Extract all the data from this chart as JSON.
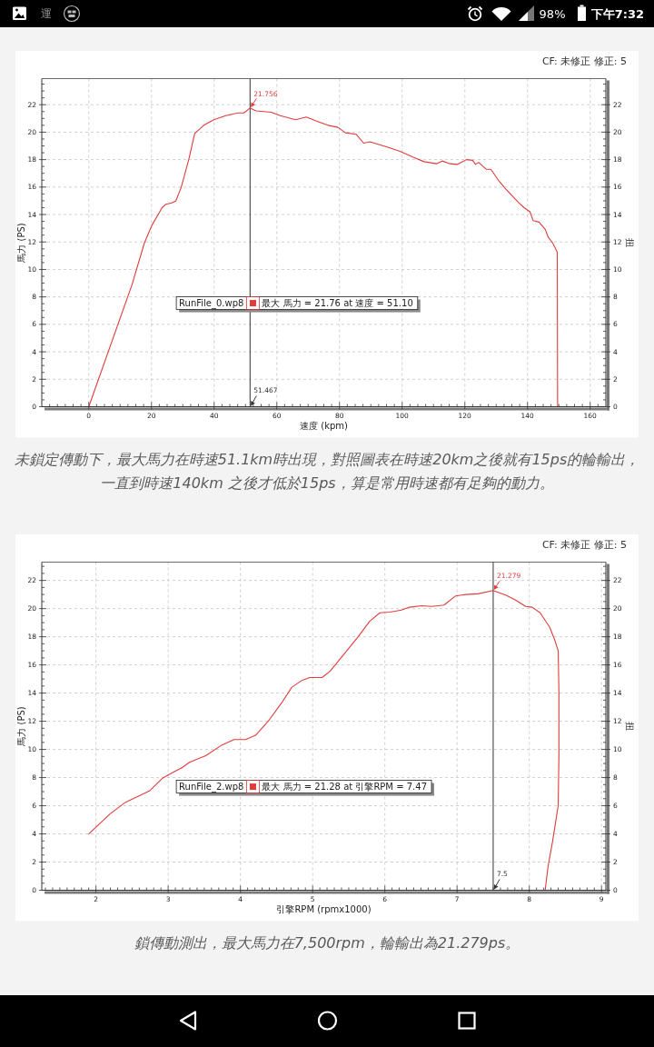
{
  "chart_data": [
    {
      "type": "other",
      "annotations": [
        "運",
        "98%",
        "下午7:32"
      ]
    },
    {
      "type": "line",
      "subtitle": "CF: 未修正 修正: 5",
      "xlabel": "速度 (kpm)",
      "ylabel": "馬力 (PS)",
      "y2label": "扭",
      "legend_title": "RunFile_0.wp8",
      "legend": "left",
      "grid": true,
      "xlim": [
        -15,
        165
      ],
      "ylim": [
        0,
        23.9
      ],
      "y2lim": [
        0,
        23.9
      ],
      "xticks": [
        {
          "value": -12.5,
          "label": null
        },
        {
          "value": -10,
          "label": null
        },
        {
          "value": -7.5,
          "label": null
        },
        {
          "value": -5,
          "label": null
        },
        {
          "value": -2.5,
          "label": null
        },
        0,
        {
          "value": 2.5,
          "label": null
        },
        {
          "value": 5,
          "label": null
        },
        {
          "value": 7.5,
          "label": null
        },
        {
          "value": 10,
          "label": null
        },
        {
          "value": 12.5,
          "label": null
        },
        {
          "value": 15,
          "label": null
        },
        {
          "value": 17.5,
          "label": null
        },
        20,
        {
          "value": 22.5,
          "label": null
        },
        {
          "value": 25,
          "label": null
        },
        {
          "value": 27.5,
          "label": null
        },
        {
          "value": 30,
          "label": null
        },
        {
          "value": 32.5,
          "label": null
        },
        {
          "value": 35,
          "label": null
        },
        {
          "value": 37.5,
          "label": null
        },
        40,
        {
          "value": 42.5,
          "label": null
        },
        {
          "value": 45,
          "label": null
        },
        {
          "value": 47.5,
          "label": null
        },
        {
          "value": 50,
          "label": null
        },
        {
          "value": 52.5,
          "label": null
        },
        {
          "value": 55,
          "label": null
        },
        {
          "value": 57.5,
          "label": null
        },
        60,
        {
          "value": 62.5,
          "label": null
        },
        {
          "value": 65,
          "label": null
        },
        {
          "value": 67.5,
          "label": null
        },
        {
          "value": 70,
          "label": null
        },
        {
          "value": 72.5,
          "label": null
        },
        {
          "value": 75,
          "label": null
        },
        {
          "value": 77.5,
          "label": null
        },
        80,
        {
          "value": 82.5,
          "label": null
        },
        {
          "value": 85,
          "label": null
        },
        {
          "value": 87.5,
          "label": null
        },
        {
          "value": 90,
          "label": null
        },
        {
          "value": 92.5,
          "label": null
        },
        {
          "value": 95,
          "label": null
        },
        {
          "value": 97.5,
          "label": null
        },
        100,
        {
          "value": 102.5,
          "label": null
        },
        {
          "value": 105,
          "label": null
        },
        {
          "value": 107.5,
          "label": null
        },
        {
          "value": 110,
          "label": null
        },
        {
          "value": 112.5,
          "label": null
        },
        {
          "value": 115,
          "label": null
        },
        {
          "value": 117.5,
          "label": null
        },
        120,
        {
          "value": 122.5,
          "label": null
        },
        {
          "value": 125,
          "label": null
        },
        {
          "value": 127.5,
          "label": null
        },
        {
          "value": 130,
          "label": null
        },
        {
          "value": 132.5,
          "label": null
        },
        {
          "value": 135,
          "label": null
        },
        {
          "value": 137.5,
          "label": null
        },
        140,
        {
          "value": 142.5,
          "label": null
        },
        {
          "value": 145,
          "label": null
        },
        {
          "value": 147.5,
          "label": null
        },
        {
          "value": 150,
          "label": null
        },
        {
          "value": 152.5,
          "label": null
        },
        {
          "value": 155,
          "label": null
        },
        {
          "value": 157.5,
          "label": null
        },
        160,
        {
          "value": 162.5,
          "label": null
        }
      ],
      "yticks": [
        0,
        {
          "value": 0.5,
          "label": null
        },
        {
          "value": 1,
          "label": null
        },
        {
          "value": 1.5,
          "label": null
        },
        2,
        {
          "value": 2.5,
          "label": null
        },
        {
          "value": 3,
          "label": null
        },
        {
          "value": 3.5,
          "label": null
        },
        4,
        {
          "value": 4.5,
          "label": null
        },
        {
          "value": 5,
          "label": null
        },
        {
          "value": 5.5,
          "label": null
        },
        6,
        {
          "value": 6.5,
          "label": null
        },
        {
          "value": 7,
          "label": null
        },
        {
          "value": 7.5,
          "label": null
        },
        8,
        {
          "value": 8.5,
          "label": null
        },
        {
          "value": 9,
          "label": null
        },
        {
          "value": 9.5,
          "label": null
        },
        10,
        {
          "value": 10.5,
          "label": null
        },
        {
          "value": 11,
          "label": null
        },
        {
          "value": 11.5,
          "label": null
        },
        12,
        {
          "value": 12.5,
          "label": null
        },
        {
          "value": 13,
          "label": null
        },
        {
          "value": 13.5,
          "label": null
        },
        14,
        {
          "value": 14.5,
          "label": null
        },
        {
          "value": 15,
          "label": null
        },
        {
          "value": 15.5,
          "label": null
        },
        16,
        {
          "value": 16.5,
          "label": null
        },
        {
          "value": 17,
          "label": null
        },
        {
          "value": 17.5,
          "label": null
        },
        18,
        {
          "value": 18.5,
          "label": null
        },
        {
          "value": 19,
          "label": null
        },
        {
          "value": 19.5,
          "label": null
        },
        20,
        {
          "value": 20.5,
          "label": null
        },
        {
          "value": 21,
          "label": null
        },
        {
          "value": 21.5,
          "label": null
        },
        22,
        {
          "value": 22.5,
          "label": null
        },
        {
          "value": 23,
          "label": null
        },
        {
          "value": 23.5,
          "label": null
        }
      ],
      "y2ticks": [
        0,
        {
          "value": 0.5,
          "label": null
        },
        {
          "value": 1,
          "label": null
        },
        {
          "value": 1.5,
          "label": null
        },
        2,
        {
          "value": 2.5,
          "label": null
        },
        {
          "value": 3,
          "label": null
        },
        {
          "value": 3.5,
          "label": null
        },
        4,
        {
          "value": 4.5,
          "label": null
        },
        {
          "value": 5,
          "label": null
        },
        {
          "value": 5.5,
          "label": null
        },
        6,
        {
          "value": 6.5,
          "label": null
        },
        {
          "value": 7,
          "label": null
        },
        {
          "value": 7.5,
          "label": null
        },
        8,
        {
          "value": 8.5,
          "label": null
        },
        {
          "value": 9,
          "label": null
        },
        {
          "value": 9.5,
          "label": null
        },
        10,
        {
          "value": 10.5,
          "label": null
        },
        {
          "value": 11,
          "label": null
        },
        {
          "value": 11.5,
          "label": null
        },
        12,
        {
          "value": 12.5,
          "label": null
        },
        {
          "value": 13,
          "label": null
        },
        {
          "value": 13.5,
          "label": null
        },
        14,
        {
          "value": 14.5,
          "label": null
        },
        {
          "value": 15,
          "label": null
        },
        {
          "value": 15.5,
          "label": null
        },
        16,
        {
          "value": 16.5,
          "label": null
        },
        {
          "value": 17,
          "label": null
        },
        {
          "value": 17.5,
          "label": null
        },
        18,
        {
          "value": 18.5,
          "label": null
        },
        {
          "value": 19,
          "label": null
        },
        {
          "value": 19.5,
          "label": null
        },
        20,
        {
          "value": 20.5,
          "label": null
        },
        {
          "value": 21,
          "label": null
        },
        {
          "value": 21.5,
          "label": null
        },
        22,
        {
          "value": 22.5,
          "label": null
        },
        {
          "value": 23,
          "label": null
        },
        {
          "value": 23.5,
          "label": null
        }
      ],
      "series": [
        {
          "name": "最大 馬力 = 21.76 at 速度 = 51.10",
          "color": "#e03c3c",
          "x": [
            0,
            13.8,
            17.7,
            20.1,
            23.4,
            24.6,
            26.5,
            27.8,
            29.5,
            31.9,
            33.8,
            36.7,
            39.9,
            43.7,
            47.6,
            49.5,
            51.467,
            53.4,
            58.2,
            61.1,
            66,
            69.4,
            72.7,
            76.3,
            79.5,
            81.9,
            85.3,
            87.7,
            89.7,
            95.4,
            99.3,
            103.7,
            107,
            110.9,
            112.8,
            115.2,
            117.6,
            120.5,
            122.5,
            123.4,
            124.4,
            126.8,
            128.3,
            130.7,
            133.1,
            137,
            138.9,
            140.8,
            141.8,
            143.7,
            145.7,
            146.6,
            148.1,
            149.5,
            149.6
          ],
          "values": [
            0,
            8.9,
            11.9,
            13.2,
            14.5,
            14.75,
            14.85,
            15,
            16,
            18,
            19.9,
            20.5,
            20.9,
            21.2,
            21.4,
            21.4,
            21.756,
            21.55,
            21.45,
            21.2,
            20.9,
            21.1,
            20.8,
            20.5,
            20.35,
            19.95,
            19.85,
            19.2,
            19.3,
            18.9,
            18.6,
            18.15,
            17.85,
            17.7,
            17.9,
            17.7,
            17.65,
            18,
            17.95,
            17.65,
            17.8,
            17.3,
            17.3,
            16.5,
            15.85,
            14.9,
            14.5,
            14.2,
            13.55,
            13.45,
            12.9,
            12.35,
            11.9,
            11.25,
            0
          ]
        }
      ],
      "ref_lines": [
        {
          "axis": "x",
          "value": 51.467,
          "label": "51.467",
          "color": "#333333"
        }
      ],
      "annotations": [
        {
          "text": "21.756",
          "x": 51.467,
          "y": 21.756
        },
        "未鎖定傳動下，最大馬力在時速51.1km時出現，對照圖表在時速20km之後就有15ps的輪輸出，",
        "一直到時速140km 之後才低於15ps，算是常用時速都有足夠的動力。"
      ]
    },
    {
      "type": "line",
      "subtitle": "CF: 未修正 修正: 5",
      "xlabel": "引擎RPM (rpmx1000)",
      "ylabel": "馬力 (PS)",
      "y2label": "扭",
      "legend_title": "RunFile_2.wp8",
      "legend": "left",
      "grid": true,
      "xlim": [
        1.25,
        9.06
      ],
      "ylim": [
        0,
        23.3
      ],
      "y2lim": [
        0,
        23.3
      ],
      "xticks": [
        {
          "value": 1.3,
          "label": null
        },
        {
          "value": 1.4,
          "label": null
        },
        {
          "value": 1.5,
          "label": null
        },
        {
          "value": 1.6,
          "label": null
        },
        {
          "value": 1.7,
          "label": null
        },
        {
          "value": 1.8,
          "label": null
        },
        {
          "value": 1.9,
          "label": null
        },
        2,
        {
          "value": 2.1,
          "label": null
        },
        {
          "value": 2.2,
          "label": null
        },
        {
          "value": 2.3,
          "label": null
        },
        {
          "value": 2.4,
          "label": null
        },
        {
          "value": 2.5,
          "label": null
        },
        {
          "value": 2.6,
          "label": null
        },
        {
          "value": 2.7,
          "label": null
        },
        {
          "value": 2.8,
          "label": null
        },
        {
          "value": 2.9,
          "label": null
        },
        3,
        {
          "value": 3.1,
          "label": null
        },
        {
          "value": 3.2,
          "label": null
        },
        {
          "value": 3.3,
          "label": null
        },
        {
          "value": 3.4,
          "label": null
        },
        {
          "value": 3.5,
          "label": null
        },
        {
          "value": 3.6,
          "label": null
        },
        {
          "value": 3.7,
          "label": null
        },
        {
          "value": 3.8,
          "label": null
        },
        {
          "value": 3.9,
          "label": null
        },
        4,
        {
          "value": 4.1,
          "label": null
        },
        {
          "value": 4.2,
          "label": null
        },
        {
          "value": 4.3,
          "label": null
        },
        {
          "value": 4.4,
          "label": null
        },
        {
          "value": 4.5,
          "label": null
        },
        {
          "value": 4.6,
          "label": null
        },
        {
          "value": 4.7,
          "label": null
        },
        {
          "value": 4.8,
          "label": null
        },
        {
          "value": 4.9,
          "label": null
        },
        5,
        {
          "value": 5.1,
          "label": null
        },
        {
          "value": 5.2,
          "label": null
        },
        {
          "value": 5.3,
          "label": null
        },
        {
          "value": 5.4,
          "label": null
        },
        {
          "value": 5.5,
          "label": null
        },
        {
          "value": 5.6,
          "label": null
        },
        {
          "value": 5.7,
          "label": null
        },
        {
          "value": 5.8,
          "label": null
        },
        {
          "value": 5.9,
          "label": null
        },
        6,
        {
          "value": 6.1,
          "label": null
        },
        {
          "value": 6.2,
          "label": null
        },
        {
          "value": 6.3,
          "label": null
        },
        {
          "value": 6.4,
          "label": null
        },
        {
          "value": 6.5,
          "label": null
        },
        {
          "value": 6.6,
          "label": null
        },
        {
          "value": 6.7,
          "label": null
        },
        {
          "value": 6.8,
          "label": null
        },
        {
          "value": 6.9,
          "label": null
        },
        7,
        {
          "value": 7.1,
          "label": null
        },
        {
          "value": 7.2,
          "label": null
        },
        {
          "value": 7.3,
          "label": null
        },
        {
          "value": 7.4,
          "label": null
        },
        {
          "value": 7.5,
          "label": null
        },
        {
          "value": 7.6,
          "label": null
        },
        {
          "value": 7.7,
          "label": null
        },
        {
          "value": 7.8,
          "label": null
        },
        {
          "value": 7.9,
          "label": null
        },
        8,
        {
          "value": 8.1,
          "label": null
        },
        {
          "value": 8.2,
          "label": null
        },
        {
          "value": 8.3,
          "label": null
        },
        {
          "value": 8.4,
          "label": null
        },
        {
          "value": 8.5,
          "label": null
        },
        {
          "value": 8.6,
          "label": null
        },
        {
          "value": 8.7,
          "label": null
        },
        {
          "value": 8.8,
          "label": null
        },
        {
          "value": 8.9,
          "label": null
        },
        9
      ],
      "yticks": [
        0,
        {
          "value": 0.5,
          "label": null
        },
        {
          "value": 1,
          "label": null
        },
        {
          "value": 1.5,
          "label": null
        },
        2,
        {
          "value": 2.5,
          "label": null
        },
        {
          "value": 3,
          "label": null
        },
        {
          "value": 3.5,
          "label": null
        },
        4,
        {
          "value": 4.5,
          "label": null
        },
        {
          "value": 5,
          "label": null
        },
        {
          "value": 5.5,
          "label": null
        },
        6,
        {
          "value": 6.5,
          "label": null
        },
        {
          "value": 7,
          "label": null
        },
        {
          "value": 7.5,
          "label": null
        },
        8,
        {
          "value": 8.5,
          "label": null
        },
        {
          "value": 9,
          "label": null
        },
        {
          "value": 9.5,
          "label": null
        },
        10,
        {
          "value": 10.5,
          "label": null
        },
        {
          "value": 11,
          "label": null
        },
        {
          "value": 11.5,
          "label": null
        },
        12,
        {
          "value": 12.5,
          "label": null
        },
        {
          "value": 13,
          "label": null
        },
        {
          "value": 13.5,
          "label": null
        },
        14,
        {
          "value": 14.5,
          "label": null
        },
        {
          "value": 15,
          "label": null
        },
        {
          "value": 15.5,
          "label": null
        },
        16,
        {
          "value": 16.5,
          "label": null
        },
        {
          "value": 17,
          "label": null
        },
        {
          "value": 17.5,
          "label": null
        },
        18,
        {
          "value": 18.5,
          "label": null
        },
        {
          "value": 19,
          "label": null
        },
        {
          "value": 19.5,
          "label": null
        },
        20,
        {
          "value": 20.5,
          "label": null
        },
        {
          "value": 21,
          "label": null
        },
        {
          "value": 21.5,
          "label": null
        },
        22,
        {
          "value": 22.5,
          "label": null
        },
        {
          "value": 23,
          "label": null
        }
      ],
      "y2ticks": [
        0,
        {
          "value": 0.5,
          "label": null
        },
        {
          "value": 1,
          "label": null
        },
        {
          "value": 1.5,
          "label": null
        },
        2,
        {
          "value": 2.5,
          "label": null
        },
        {
          "value": 3,
          "label": null
        },
        {
          "value": 3.5,
          "label": null
        },
        4,
        {
          "value": 4.5,
          "label": null
        },
        {
          "value": 5,
          "label": null
        },
        {
          "value": 5.5,
          "label": null
        },
        6,
        {
          "value": 6.5,
          "label": null
        },
        {
          "value": 7,
          "label": null
        },
        {
          "value": 7.5,
          "label": null
        },
        8,
        {
          "value": 8.5,
          "label": null
        },
        {
          "value": 9,
          "label": null
        },
        {
          "value": 9.5,
          "label": null
        },
        10,
        {
          "value": 10.5,
          "label": null
        },
        {
          "value": 11,
          "label": null
        },
        {
          "value": 11.5,
          "label": null
        },
        12,
        {
          "value": 12.5,
          "label": null
        },
        {
          "value": 13,
          "label": null
        },
        {
          "value": 13.5,
          "label": null
        },
        14,
        {
          "value": 14.5,
          "label": null
        },
        {
          "value": 15,
          "label": null
        },
        {
          "value": 15.5,
          "label": null
        },
        16,
        {
          "value": 16.5,
          "label": null
        },
        {
          "value": 17,
          "label": null
        },
        {
          "value": 17.5,
          "label": null
        },
        18,
        {
          "value": 18.5,
          "label": null
        },
        {
          "value": 19,
          "label": null
        },
        {
          "value": 19.5,
          "label": null
        },
        20,
        {
          "value": 20.5,
          "label": null
        },
        {
          "value": 21,
          "label": null
        },
        {
          "value": 21.5,
          "label": null
        },
        22,
        {
          "value": 22.5,
          "label": null
        },
        {
          "value": 23,
          "label": null
        }
      ],
      "series": [
        {
          "name": "最大 馬力 = 21.28 at 引擎RPM = 7.47",
          "color": "#e03c3c",
          "x": [
            1.9,
            2.19,
            2.41,
            2.74,
            2.92,
            3.08,
            3.19,
            3.3,
            3.52,
            3.74,
            3.91,
            4.07,
            4.21,
            4.4,
            4.57,
            4.71,
            4.85,
            4.96,
            5.13,
            5.24,
            5.4,
            5.63,
            5.79,
            5.93,
            6.07,
            6.23,
            6.34,
            6.51,
            6.65,
            6.82,
            6.98,
            7.12,
            7.29,
            7.5,
            7.68,
            7.81,
            7.95,
            8.04,
            8.15,
            8.28,
            8.35,
            8.4,
            8.41,
            8.41,
            8.4,
            8.32,
            8.26,
            8.22
          ],
          "values": [
            4,
            5.4,
            6.25,
            7.05,
            7.95,
            8.4,
            8.7,
            9.1,
            9.55,
            10.3,
            10.7,
            10.7,
            11,
            12.1,
            13.3,
            14.4,
            14.9,
            15.1,
            15.1,
            15.55,
            16.55,
            18,
            19.1,
            19.7,
            19.75,
            19.9,
            20.1,
            20.2,
            20.15,
            20.25,
            20.9,
            21,
            21.05,
            21.279,
            20.95,
            20.6,
            20.15,
            20.1,
            19.7,
            18.7,
            17.8,
            17,
            14.1,
            9.6,
            6,
            3.4,
            1.7,
            0
          ]
        }
      ],
      "ref_lines": [
        {
          "axis": "x",
          "value": 7.5,
          "label": "7.5",
          "color": "#333333"
        }
      ],
      "annotations": [
        {
          "text": "21.279",
          "x": 7.5,
          "y": 21.279
        },
        "鎖傳動測出，最大馬力在7,500rpm，輪輸出為21.279ps。"
      ]
    }
  ]
}
